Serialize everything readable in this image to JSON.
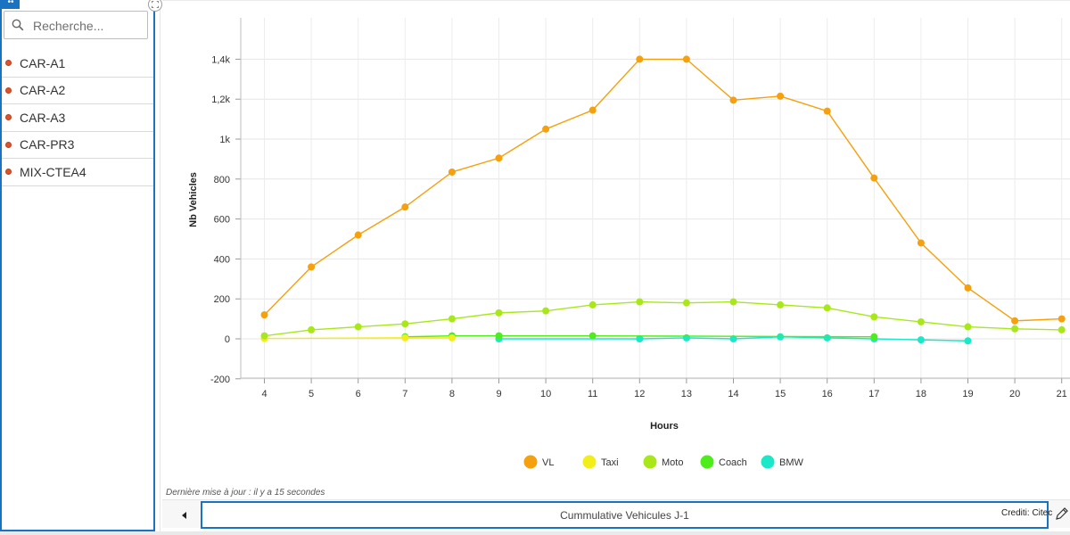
{
  "sidebar": {
    "search": {
      "placeholder": "Recherche..."
    },
    "items": [
      {
        "label": "CAR-A1"
      },
      {
        "label": "CAR-A2"
      },
      {
        "label": "CAR-A3"
      },
      {
        "label": "CAR-PR3"
      },
      {
        "label": "MIX-CTEA4"
      }
    ],
    "dot_color": "#e0522a",
    "accent_color": "#1a73c2"
  },
  "chart_data": {
    "type": "line",
    "xlabel": "Hours",
    "ylabel": "Nb Vehicles",
    "x": [
      4,
      5,
      6,
      7,
      8,
      9,
      10,
      11,
      12,
      13,
      14,
      15,
      16,
      17,
      18,
      19,
      20,
      21
    ],
    "ylim": [
      -200,
      1600
    ],
    "y_ticks": [
      -200,
      0,
      200,
      400,
      600,
      800,
      1000,
      1200,
      1400
    ],
    "y_tick_labels": [
      "-200",
      "0",
      "200",
      "400",
      "600",
      "800",
      "1k",
      "1,2k",
      "1,4k"
    ],
    "grid": true,
    "legend_position": "bottom",
    "series": [
      {
        "name": "VL",
        "color": "#f5a00c",
        "values": [
          120,
          360,
          520,
          660,
          835,
          905,
          1050,
          1145,
          1400,
          1400,
          1195,
          1215,
          1140,
          805,
          480,
          255,
          90,
          100
        ]
      },
      {
        "name": "Taxi",
        "color": "#f2ee1a",
        "values": [
          2,
          null,
          null,
          5,
          5,
          null,
          null,
          null,
          null,
          null,
          null,
          null,
          null,
          null,
          null,
          null,
          null,
          null
        ]
      },
      {
        "name": "Moto",
        "color": "#a8e81a",
        "values": [
          15,
          45,
          60,
          75,
          100,
          130,
          140,
          170,
          185,
          180,
          185,
          170,
          155,
          110,
          85,
          60,
          50,
          45
        ]
      },
      {
        "name": "Coach",
        "color": "#4ced1a",
        "values": [
          null,
          null,
          null,
          10,
          15,
          15,
          null,
          15,
          null,
          null,
          null,
          null,
          null,
          10,
          null,
          null,
          null,
          null
        ]
      },
      {
        "name": "BMW",
        "color": "#1ae8c8",
        "values": [
          null,
          null,
          null,
          null,
          null,
          0,
          null,
          null,
          0,
          5,
          0,
          10,
          5,
          0,
          -5,
          -10,
          null,
          null
        ]
      }
    ]
  },
  "footer": {
    "last_update": "Dernière mise à jour : il y a 15 secondes",
    "selected_chart": "Cummulative Vehicules J-1",
    "credits": "Crediti: Citec"
  }
}
